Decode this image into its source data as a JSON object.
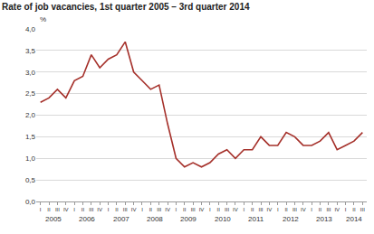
{
  "chart_data": {
    "type": "line",
    "title": "Rate of job vacancies, 1st quarter 2005 – 3rd quarter 2014",
    "y_label": "%",
    "categories": [
      "I",
      "II",
      "III",
      "IV",
      "I",
      "II",
      "III",
      "IV",
      "I",
      "II",
      "III",
      "IV",
      "I",
      "II",
      "III",
      "IV",
      "I",
      "II",
      "III",
      "IV",
      "I",
      "II",
      "III",
      "IV",
      "I",
      "II",
      "III",
      "IV",
      "I",
      "II",
      "III",
      "IV",
      "I",
      "II",
      "III",
      "IV",
      "I",
      "II",
      "III"
    ],
    "years": [
      "2005",
      "2006",
      "2007",
      "2008",
      "2009",
      "2010",
      "2011",
      "2012",
      "2013",
      "2014"
    ],
    "series": [
      {
        "name": "Rate of job vacancies",
        "color": "#a5302a",
        "values": [
          2.3,
          2.4,
          2.6,
          2.4,
          2.8,
          2.9,
          3.4,
          3.1,
          3.3,
          3.4,
          3.7,
          3.0,
          2.8,
          2.6,
          2.7,
          1.8,
          1.0,
          0.8,
          0.9,
          0.8,
          0.9,
          1.1,
          1.2,
          1.0,
          1.2,
          1.2,
          1.5,
          1.3,
          1.3,
          1.6,
          1.5,
          1.3,
          1.3,
          1.4,
          1.6,
          1.2,
          1.3,
          1.4,
          1.6
        ]
      }
    ],
    "ylim": [
      0,
      4
    ],
    "yticks": [
      {
        "value": 0,
        "label": "0,0"
      },
      {
        "value": 0.5,
        "label": "0,5"
      },
      {
        "value": 1,
        "label": "1,0"
      },
      {
        "value": 1.5,
        "label": "1,5"
      },
      {
        "value": 2,
        "label": "2,0"
      },
      {
        "value": 2.5,
        "label": "2,5"
      },
      {
        "value": 3,
        "label": "3,0"
      },
      {
        "value": 3.5,
        "label": "3,5"
      },
      {
        "value": 4,
        "label": "4,0"
      }
    ],
    "grid": true
  }
}
